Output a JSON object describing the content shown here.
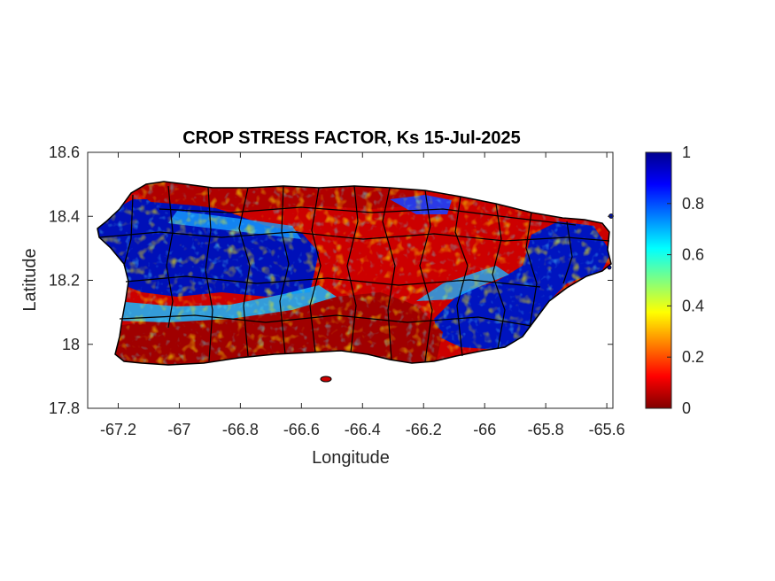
{
  "chart_data": {
    "type": "heatmap",
    "title": "CROP STRESS FACTOR, Ks",
    "date": "15-Jul-2025",
    "xlabel": "Longitude",
    "ylabel": "Latitude",
    "xlim": [
      -67.3,
      -65.58
    ],
    "ylim": [
      17.8,
      18.6
    ],
    "xticks": [
      "-67.2",
      "-67",
      "-66.8",
      "-66.6",
      "-66.4",
      "-66.2",
      "-66",
      "-65.8",
      "-65.6"
    ],
    "xtick_values": [
      -67.2,
      -67.0,
      -66.8,
      -66.6,
      -66.4,
      -66.2,
      -66.0,
      -65.8,
      -65.6
    ],
    "yticks": [
      "18.6",
      "18.4",
      "18.2",
      "18",
      "17.8"
    ],
    "ytick_values": [
      18.6,
      18.4,
      18.2,
      18.0,
      17.8
    ],
    "colorbar": {
      "colormap": "jet",
      "range": [
        0,
        1
      ],
      "ticks": [
        "1",
        "0.8",
        "0.6",
        "0.4",
        "0.2",
        "0"
      ],
      "tick_values": [
        1,
        0.8,
        0.6,
        0.4,
        0.2,
        0
      ]
    },
    "regions": [
      {
        "name": "west",
        "ks_approx": 0.95
      },
      {
        "name": "west-central interior",
        "ks_approx": 0.9
      },
      {
        "name": "north coast",
        "ks_approx": 0.1
      },
      {
        "name": "south coast",
        "ks_approx": 0.05
      },
      {
        "name": "central-east interior",
        "ks_approx": 0.15
      },
      {
        "name": "east / southeast",
        "ks_approx": 0.95
      }
    ]
  }
}
